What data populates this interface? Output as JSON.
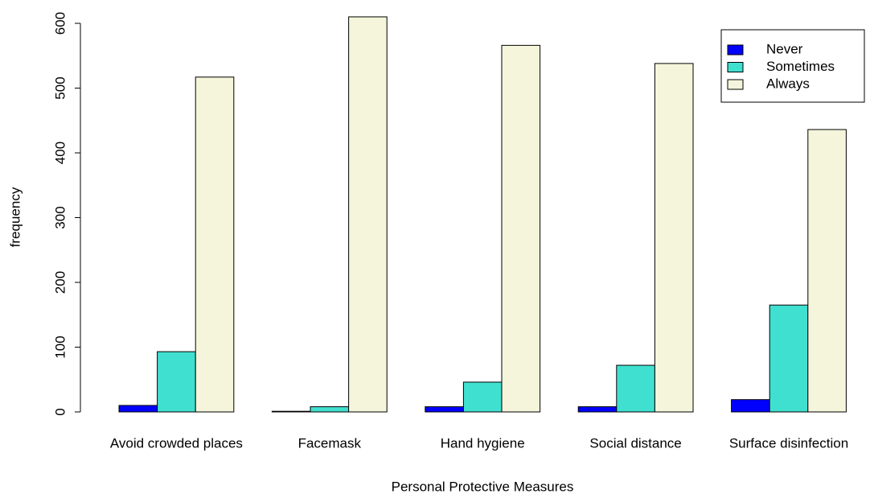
{
  "chart_data": {
    "type": "grouped_bar",
    "x_label": "Personal Protective Measures",
    "y_label": "frequency",
    "categories": [
      "Avoid crowded places",
      "Facemask",
      "Hand hygiene",
      "Social distance",
      "Surface disinfection"
    ],
    "series": [
      {
        "name": "Never",
        "color": "#0000ff",
        "values": [
          10,
          1,
          8,
          8,
          19
        ]
      },
      {
        "name": "Sometimes",
        "color": "#40e0d0",
        "values": [
          93,
          8,
          46,
          72,
          165
        ]
      },
      {
        "name": "Always",
        "color": "#f5f5dc",
        "values": [
          517,
          610,
          566,
          538,
          436
        ]
      }
    ],
    "ylim": [
      0,
      600
    ],
    "yticks": [
      0,
      100,
      200,
      300,
      400,
      500,
      600
    ],
    "legend": "topright"
  }
}
